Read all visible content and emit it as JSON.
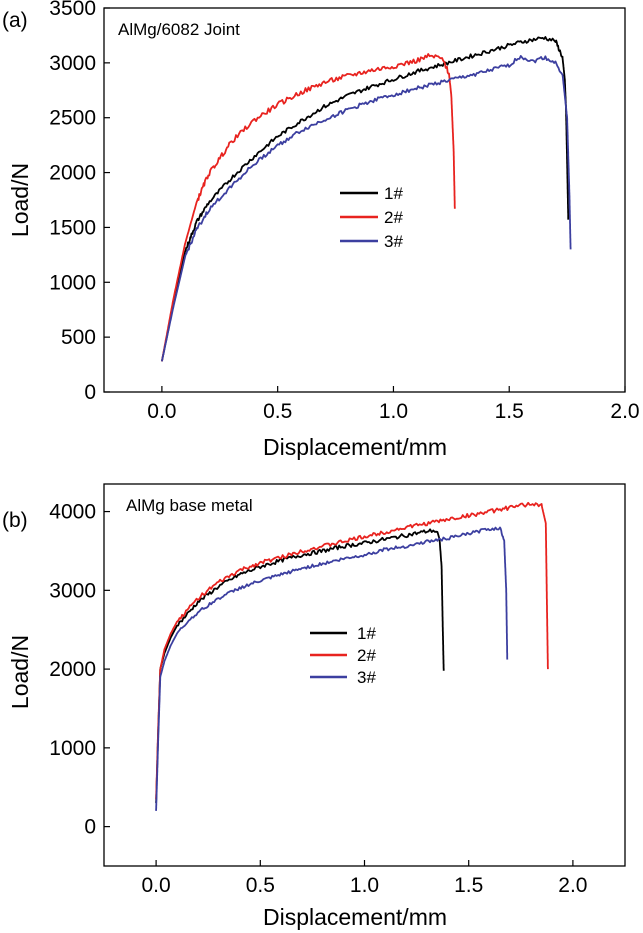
{
  "chart_data": [
    {
      "type": "line",
      "panel_label": "(a)",
      "title": "AlMg/6082 Joint",
      "xlabel": "Displacement/mm",
      "ylabel": "Load/N",
      "xlim": [
        -0.25,
        2.0
      ],
      "ylim": [
        0,
        3500
      ],
      "xticks": [
        "0.0",
        "0.5",
        "1.0",
        "1.5",
        "2.0"
      ],
      "yticks": [
        "0",
        "500",
        "1000",
        "1500",
        "2000",
        "2500",
        "3000",
        "3500"
      ],
      "grid": false,
      "legend_position": "center",
      "series": [
        {
          "name": "1#",
          "color": "#000000",
          "noise": 18,
          "x": [
            0,
            0.05,
            0.1,
            0.15,
            0.2,
            0.3,
            0.4,
            0.5,
            0.6,
            0.7,
            0.8,
            0.9,
            1.0,
            1.1,
            1.2,
            1.3,
            1.4,
            1.5,
            1.55,
            1.6,
            1.65,
            1.7,
            1.73,
            1.74,
            1.745,
            1.75,
            1.755
          ],
          "y": [
            280,
            800,
            1280,
            1550,
            1720,
            1950,
            2150,
            2330,
            2470,
            2600,
            2700,
            2780,
            2850,
            2920,
            2980,
            3040,
            3100,
            3160,
            3190,
            3210,
            3230,
            3200,
            3050,
            2850,
            2600,
            2100,
            1570
          ]
        },
        {
          "name": "2#",
          "color": "#e8231f",
          "noise": 22,
          "x": [
            0,
            0.05,
            0.1,
            0.15,
            0.2,
            0.3,
            0.4,
            0.5,
            0.6,
            0.7,
            0.8,
            0.9,
            1.0,
            1.1,
            1.15,
            1.2,
            1.22,
            1.24,
            1.25,
            1.26,
            1.265
          ],
          "y": [
            280,
            850,
            1350,
            1730,
            1980,
            2280,
            2480,
            2620,
            2730,
            2820,
            2880,
            2930,
            2970,
            3020,
            3060,
            3050,
            3000,
            2900,
            2700,
            2200,
            1670
          ]
        },
        {
          "name": "3#",
          "color": "#3c3fa0",
          "noise": 18,
          "x": [
            0,
            0.05,
            0.1,
            0.15,
            0.2,
            0.3,
            0.4,
            0.5,
            0.6,
            0.7,
            0.8,
            0.9,
            1.0,
            1.1,
            1.2,
            1.3,
            1.4,
            1.5,
            1.55,
            1.6,
            1.65,
            1.7,
            1.73,
            1.75,
            1.76,
            1.765
          ],
          "y": [
            280,
            780,
            1230,
            1480,
            1650,
            1880,
            2080,
            2250,
            2380,
            2480,
            2570,
            2650,
            2710,
            2770,
            2820,
            2870,
            2920,
            2980,
            3060,
            3010,
            3050,
            3000,
            2900,
            2500,
            1800,
            1300
          ]
        }
      ]
    },
    {
      "type": "line",
      "panel_label": "(b)",
      "title": "AlMg base metal",
      "xlabel": "Displacement/mm",
      "ylabel": "Load/N",
      "xlim": [
        -0.25,
        2.25
      ],
      "ylim": [
        -500,
        4350
      ],
      "xticks": [
        "0.0",
        "0.5",
        "1.0",
        "1.5",
        "2.0"
      ],
      "yticks": [
        "0",
        "1000",
        "2000",
        "3000",
        "4000"
      ],
      "grid": false,
      "legend_position": "center",
      "series": [
        {
          "name": "1#",
          "color": "#000000",
          "noise": 25,
          "x": [
            0,
            0.01,
            0.02,
            0.04,
            0.07,
            0.1,
            0.15,
            0.2,
            0.3,
            0.4,
            0.5,
            0.6,
            0.7,
            0.8,
            0.9,
            1.0,
            1.1,
            1.2,
            1.3,
            1.33,
            1.35,
            1.36,
            1.37,
            1.375,
            1.38
          ],
          "y": [
            300,
            1200,
            2000,
            2200,
            2400,
            2550,
            2700,
            2850,
            3050,
            3200,
            3300,
            3380,
            3450,
            3500,
            3560,
            3600,
            3650,
            3700,
            3750,
            3760,
            3740,
            3650,
            3300,
            2600,
            1980
          ]
        },
        {
          "name": "2#",
          "color": "#e8231f",
          "noise": 25,
          "x": [
            0,
            0.01,
            0.02,
            0.04,
            0.07,
            0.1,
            0.15,
            0.2,
            0.3,
            0.4,
            0.5,
            0.6,
            0.7,
            0.8,
            0.9,
            1.0,
            1.1,
            1.2,
            1.3,
            1.4,
            1.5,
            1.6,
            1.7,
            1.8,
            1.85,
            1.87,
            1.875,
            1.88
          ],
          "y": [
            350,
            1250,
            2000,
            2250,
            2450,
            2600,
            2750,
            2900,
            3100,
            3250,
            3350,
            3420,
            3500,
            3560,
            3620,
            3680,
            3740,
            3800,
            3850,
            3900,
            3950,
            4000,
            4050,
            4100,
            4080,
            3850,
            2900,
            2000
          ]
        },
        {
          "name": "3#",
          "color": "#3c3fa0",
          "noise": 20,
          "x": [
            0,
            0.01,
            0.02,
            0.04,
            0.07,
            0.1,
            0.15,
            0.2,
            0.3,
            0.4,
            0.5,
            0.6,
            0.7,
            0.8,
            0.9,
            1.0,
            1.1,
            1.2,
            1.3,
            1.4,
            1.5,
            1.55,
            1.6,
            1.65,
            1.67,
            1.68,
            1.685
          ],
          "y": [
            200,
            1100,
            1900,
            2100,
            2300,
            2450,
            2600,
            2720,
            2900,
            3030,
            3120,
            3200,
            3280,
            3340,
            3400,
            3450,
            3520,
            3560,
            3620,
            3660,
            3720,
            3750,
            3780,
            3790,
            3650,
            3000,
            2120
          ]
        }
      ]
    }
  ]
}
